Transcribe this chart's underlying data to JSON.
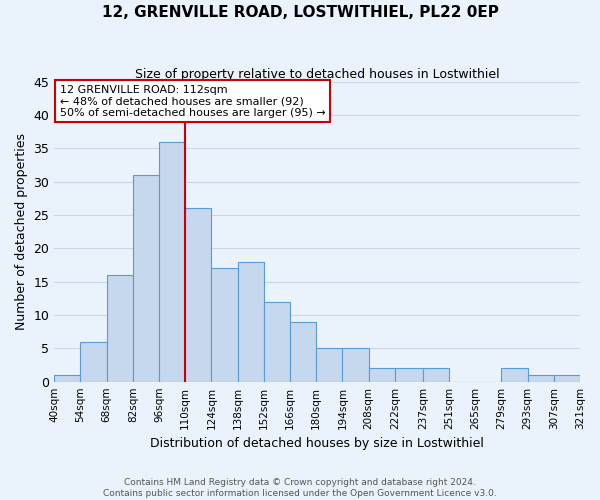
{
  "title": "12, GRENVILLE ROAD, LOSTWITHIEL, PL22 0EP",
  "subtitle": "Size of property relative to detached houses in Lostwithiel",
  "xlabel": "Distribution of detached houses by size in Lostwithiel",
  "ylabel": "Number of detached properties",
  "bin_edges": [
    40,
    54,
    68,
    82,
    96,
    110,
    124,
    138,
    152,
    166,
    180,
    194,
    208,
    222,
    237,
    251,
    265,
    279,
    293,
    307,
    321
  ],
  "bar_heights": [
    1,
    6,
    16,
    31,
    36,
    26,
    17,
    18,
    12,
    9,
    5,
    5,
    2,
    2,
    2,
    0,
    0,
    2,
    1,
    1
  ],
  "tick_labels": [
    "40sqm",
    "54sqm",
    "68sqm",
    "82sqm",
    "96sqm",
    "110sqm",
    "124sqm",
    "138sqm",
    "152sqm",
    "166sqm",
    "180sqm",
    "194sqm",
    "208sqm",
    "222sqm",
    "237sqm",
    "251sqm",
    "265sqm",
    "279sqm",
    "293sqm",
    "307sqm",
    "321sqm"
  ],
  "bar_color": "#c5d8ed",
  "bar_edge_color": "#5b9bd5",
  "vline_x": 110,
  "vline_color": "#cc0000",
  "ylim": [
    0,
    45
  ],
  "yticks": [
    0,
    5,
    10,
    15,
    20,
    25,
    30,
    35,
    40,
    45
  ],
  "annotation_title": "12 GRENVILLE ROAD: 112sqm",
  "annotation_line1": "← 48% of detached houses are smaller (92)",
  "annotation_line2": "50% of semi-detached houses are larger (95) →",
  "annotation_box_color": "#ffffff",
  "annotation_box_edge": "#cc0000",
  "grid_color": "#c8d8e8",
  "bg_color": "#eaf2fb",
  "footer1": "Contains HM Land Registry data © Crown copyright and database right 2024.",
  "footer2": "Contains public sector information licensed under the Open Government Licence v3.0."
}
